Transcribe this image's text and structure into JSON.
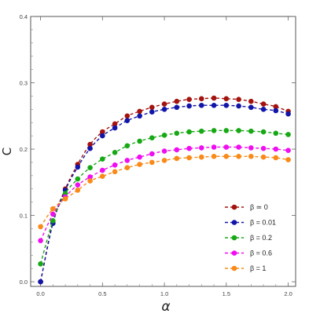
{
  "chart_data": {
    "type": "scatter",
    "title": "",
    "xlabel": "α",
    "ylabel": "C",
    "xlim": [
      -0.08,
      2.06
    ],
    "ylim": [
      -0.007,
      0.4
    ],
    "xticks": [
      0.0,
      0.5,
      1.0,
      1.5,
      2.0
    ],
    "xtick_labels": [
      "0.0",
      "0.5",
      "1.0",
      "1.5",
      "2.0"
    ],
    "yticks": [
      0.0,
      0.1,
      0.2,
      0.3,
      0.4
    ],
    "ytick_labels": [
      "0.0",
      "0.1",
      "0.2",
      "0.3",
      "0.4"
    ],
    "grid": false,
    "legend_position": "bottom-right",
    "x": [
      0.0,
      0.1,
      0.2,
      0.3,
      0.4,
      0.5,
      0.6,
      0.7,
      0.8,
      0.9,
      1.0,
      1.1,
      1.2,
      1.3,
      1.4,
      1.5,
      1.6,
      1.7,
      1.8,
      1.9,
      2.0
    ],
    "series": [
      {
        "name": "β ≃ 0",
        "color": "#a3130f",
        "values": [
          0.0,
          0.09,
          0.14,
          0.177,
          0.207,
          0.226,
          0.238,
          0.25,
          0.257,
          0.263,
          0.268,
          0.272,
          0.275,
          0.276,
          0.277,
          0.276,
          0.275,
          0.272,
          0.268,
          0.264,
          0.257
        ]
      },
      {
        "name": "β = 0.01",
        "color": "#1115a8",
        "values": [
          0.0,
          0.088,
          0.138,
          0.173,
          0.201,
          0.22,
          0.232,
          0.243,
          0.25,
          0.256,
          0.26,
          0.263,
          0.265,
          0.266,
          0.266,
          0.266,
          0.265,
          0.263,
          0.26,
          0.258,
          0.253
        ]
      },
      {
        "name": "β = 0.2",
        "color": "#17a815",
        "values": [
          0.027,
          0.092,
          0.133,
          0.155,
          0.172,
          0.185,
          0.195,
          0.205,
          0.212,
          0.217,
          0.221,
          0.224,
          0.226,
          0.227,
          0.228,
          0.228,
          0.228,
          0.227,
          0.226,
          0.224,
          0.222
        ]
      },
      {
        "name": "β = 0.6",
        "color": "#f00ef0",
        "values": [
          0.062,
          0.102,
          0.128,
          0.146,
          0.158,
          0.168,
          0.176,
          0.183,
          0.188,
          0.193,
          0.197,
          0.199,
          0.201,
          0.202,
          0.203,
          0.203,
          0.203,
          0.202,
          0.201,
          0.2,
          0.198
        ]
      },
      {
        "name": "β = 1",
        "color": "#f98a17",
        "values": [
          0.083,
          0.11,
          0.125,
          0.138,
          0.152,
          0.159,
          0.166,
          0.172,
          0.177,
          0.18,
          0.183,
          0.186,
          0.187,
          0.188,
          0.189,
          0.189,
          0.189,
          0.189,
          0.188,
          0.187,
          0.184
        ]
      }
    ]
  }
}
